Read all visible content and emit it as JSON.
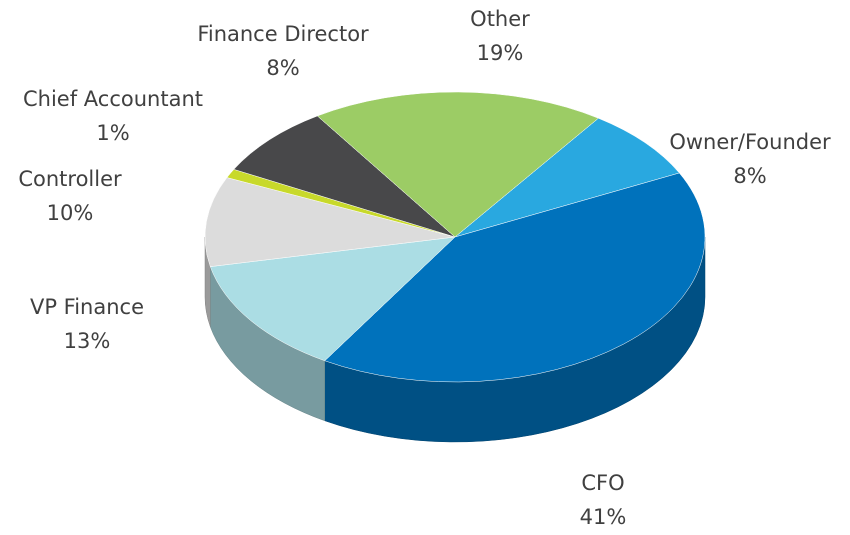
{
  "chart_data": {
    "type": "pie3d",
    "categories": [
      "Owner/Founder",
      "CFO",
      "VP Finance",
      "Controller",
      "Chief Accountant",
      "Finance Director",
      "Other"
    ],
    "values": [
      8,
      41,
      13,
      10,
      1,
      8,
      19
    ],
    "value_labels": [
      "8%",
      "41%",
      "13%",
      "10%",
      "1%",
      "8%",
      "19%"
    ],
    "colors": [
      "#29a8e0",
      "#0072bc",
      "#abdde4",
      "#dcdcdc",
      "#c8d92b",
      "#48484a",
      "#9ccc65"
    ]
  }
}
